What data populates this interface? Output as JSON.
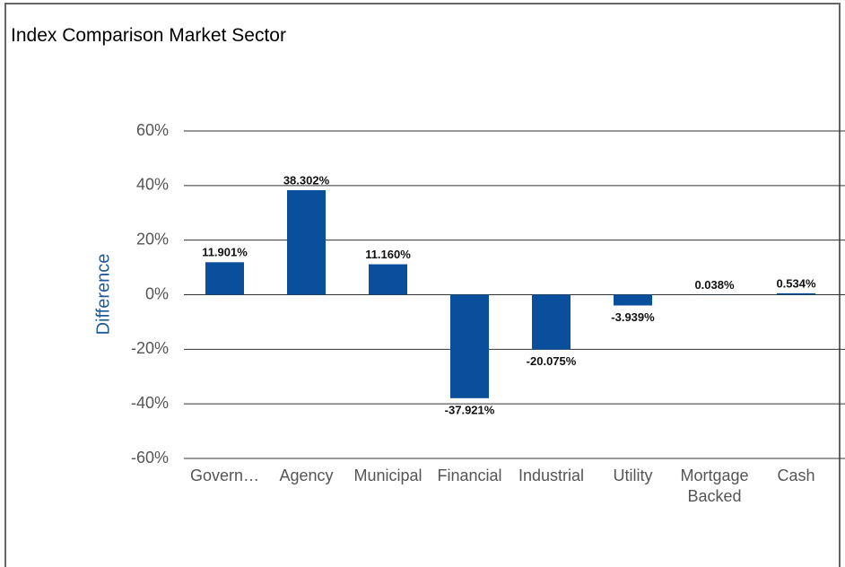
{
  "chart_data": {
    "type": "bar",
    "title": "Index Comparison Market Sector",
    "y_label": "Difference",
    "categories": [
      "Govern…",
      "Agency",
      "Municipal",
      "Financial",
      "Industrial",
      "Utility",
      "Mortgage Backed",
      "Cash"
    ],
    "values": [
      11.901,
      38.302,
      11.16,
      -37.921,
      -20.075,
      -3.939,
      0.038,
      0.534
    ],
    "value_labels": [
      "11.901%",
      "38.302%",
      "11.160%",
      "-37.921%",
      "-20.075%",
      "-3.939%",
      "0.038%",
      "0.534%"
    ],
    "color": "#0a4f9c",
    "ylim": [
      -60,
      60
    ],
    "yticks": [
      {
        "value": -60,
        "label": "-60%"
      },
      {
        "value": -40,
        "label": "-40%"
      },
      {
        "value": -20,
        "label": "-20%"
      },
      {
        "value": 0,
        "label": "0%"
      },
      {
        "value": 20,
        "label": "20%"
      },
      {
        "value": 40,
        "label": "40%"
      },
      {
        "value": 60,
        "label": "60%"
      }
    ],
    "grid": true
  }
}
